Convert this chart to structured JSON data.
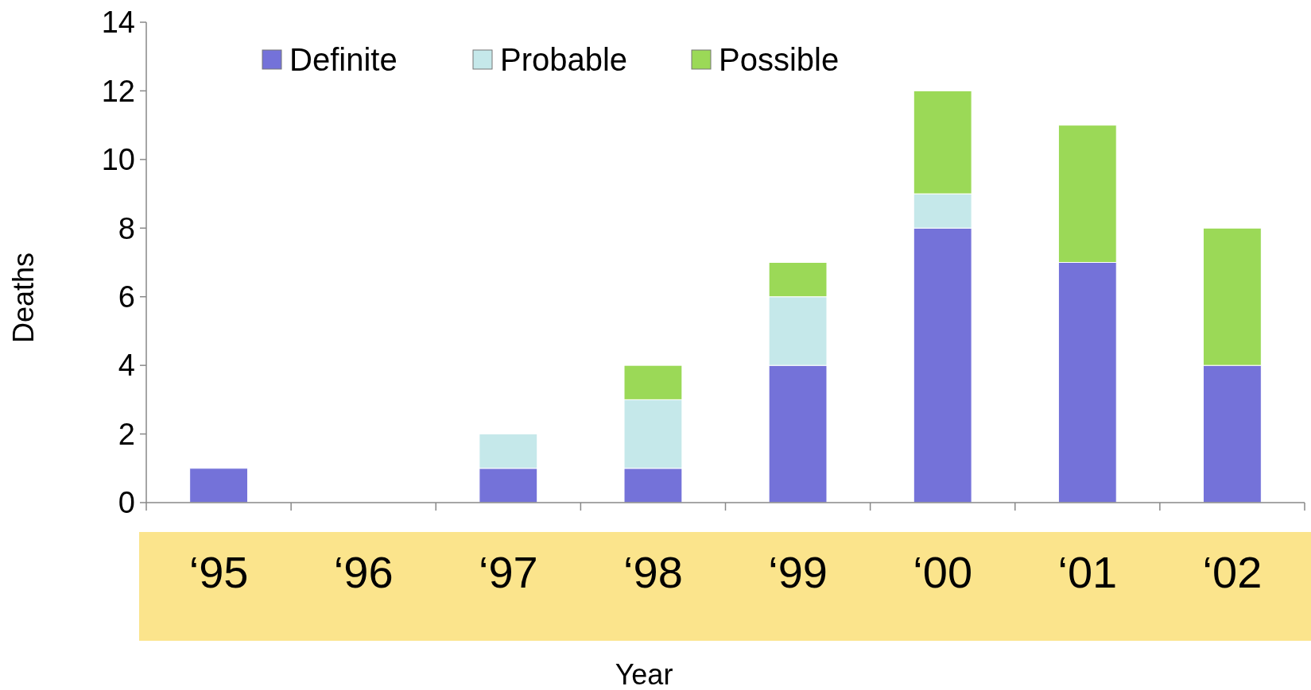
{
  "chart_data": {
    "type": "bar",
    "stacked": true,
    "xlabel": "Year",
    "ylabel": "Deaths",
    "categories": [
      "‘95",
      "‘96",
      "‘97",
      "‘98",
      "‘99",
      "‘00",
      "‘01",
      "‘02"
    ],
    "series": [
      {
        "name": "Definite",
        "color": "#7472d9",
        "values": [
          1,
          0,
          1,
          1,
          4,
          8,
          7,
          4
        ]
      },
      {
        "name": "Probable",
        "color": "#c5e8ea",
        "values": [
          0,
          0,
          1,
          2,
          2,
          1,
          0,
          0
        ]
      },
      {
        "name": "Possible",
        "color": "#9bd957",
        "values": [
          0,
          0,
          0,
          1,
          1,
          3,
          4,
          4
        ]
      }
    ],
    "ylim": [
      0,
      14
    ],
    "yticks": [
      0,
      2,
      4,
      6,
      8,
      10,
      12,
      14
    ],
    "grid": false,
    "legend": "top left"
  }
}
